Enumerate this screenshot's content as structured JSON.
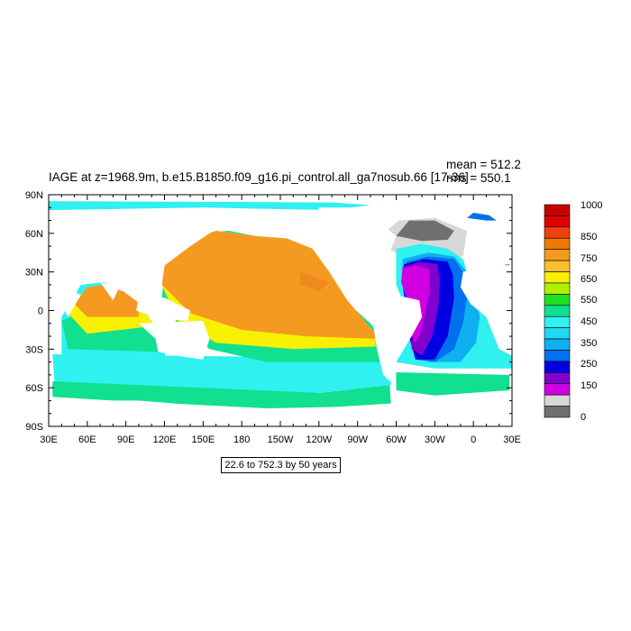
{
  "chart_data": {
    "type": "heatmap",
    "title": "IAGE at z=1968.9m, b.e15.B1850.f09_g16.pi_control.all_ga7nosub.66 [17-36]",
    "mean_label": "mean = 512.2",
    "rms_label": "rms = 550.1",
    "range_label": "22.6 to 752.3 by 50 years",
    "xlim": [
      30,
      390
    ],
    "ylim": [
      -90,
      90
    ],
    "x_ticks": [
      "30E",
      "60E",
      "90E",
      "120E",
      "150E",
      "180",
      "150W",
      "120W",
      "90W",
      "60W",
      "30W",
      "0",
      "30E"
    ],
    "y_ticks": [
      "90N",
      "60N",
      "30N",
      "0",
      "30S",
      "60S",
      "90S"
    ],
    "colorbar": {
      "labels": [
        "1000",
        "850",
        "750",
        "650",
        "550",
        "450",
        "350",
        "250",
        "150",
        "0"
      ],
      "colors": [
        "#c80000",
        "#e00000",
        "#f04010",
        "#f07800",
        "#f59a20",
        "#fbc030",
        "#f8f000",
        "#b0f000",
        "#20e020",
        "#10e090",
        "#30f0f0",
        "#20d8f0",
        "#10b0f0",
        "#0070f0",
        "#0000e0",
        "#8000d0",
        "#d000e0",
        "#d8d8d8",
        "#707070"
      ]
    }
  }
}
